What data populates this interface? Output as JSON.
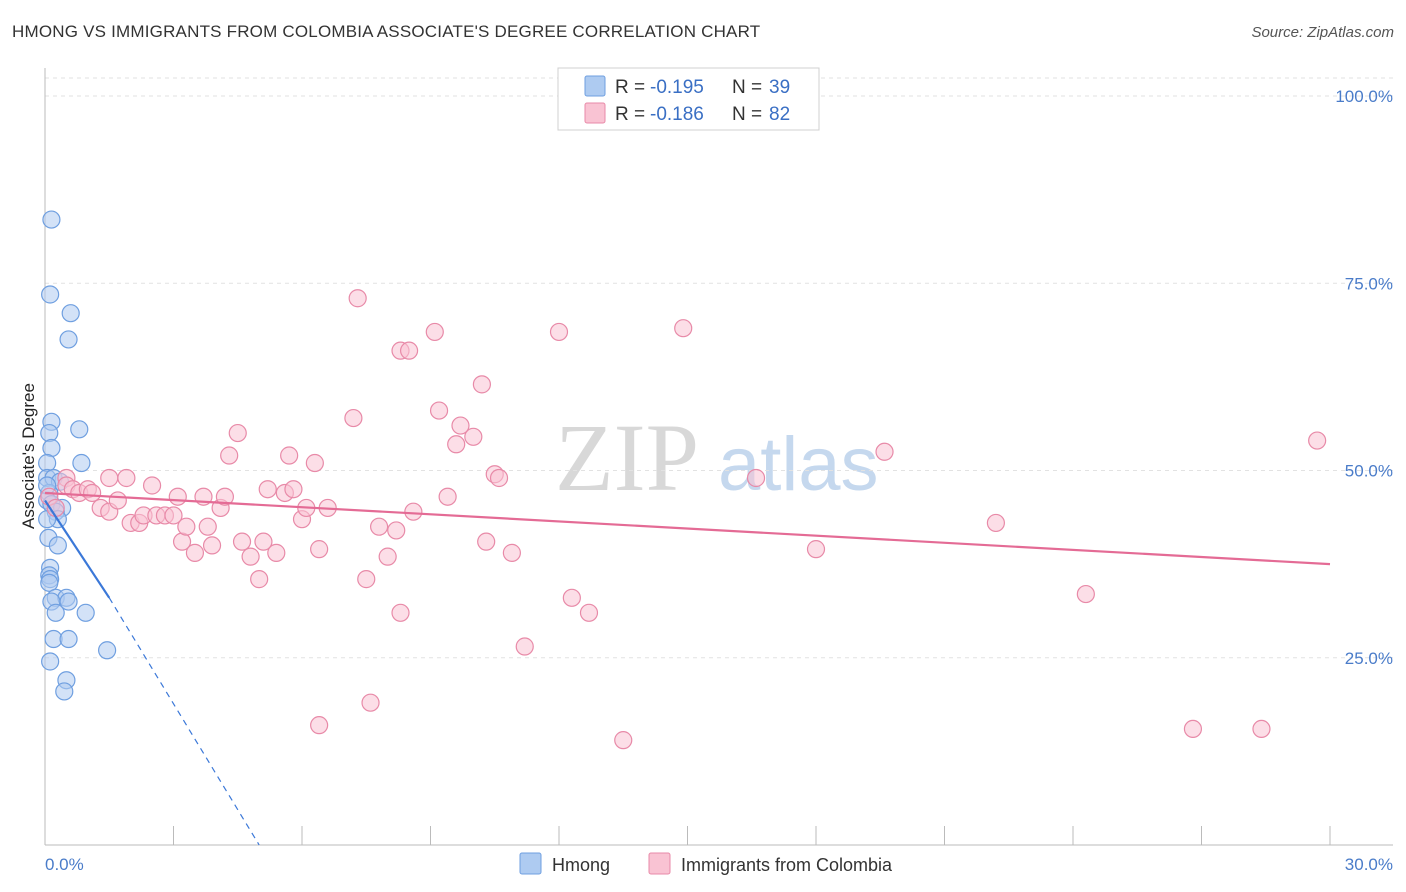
{
  "header": {
    "title": "HMONG VS IMMIGRANTS FROM COLOMBIA ASSOCIATE'S DEGREE CORRELATION CHART",
    "source": "Source: ZipAtlas.com"
  },
  "watermark": {
    "zip": "ZIP",
    "atlas": "atlas"
  },
  "legend": {
    "rows": [
      {
        "r_label": "R = ",
        "r_value": "-0.195",
        "n_label": "N = ",
        "n_value": "39",
        "color": "#a9c8f0"
      },
      {
        "r_label": "R = ",
        "r_value": "-0.186",
        "n_label": "N = ",
        "n_value": "82",
        "color": "#f7b8cb"
      }
    ]
  },
  "chart_data": {
    "type": "scatter",
    "title": "HMONG VS IMMIGRANTS FROM COLOMBIA ASSOCIATE'S DEGREE CORRELATION CHART",
    "xlabel": "",
    "ylabel": "Associate's Degree",
    "xlim": [
      0,
      30
    ],
    "ylim": [
      0,
      104
    ],
    "x_tick_labels": [
      "0.0%",
      "30.0%"
    ],
    "y_ticks": [
      25,
      50,
      75,
      100
    ],
    "y_tick_labels": [
      "25.0%",
      "50.0%",
      "75.0%",
      "100.0%"
    ],
    "grid": true,
    "series": [
      {
        "name": "Hmong",
        "color": "#6f9fe0",
        "fill": "#aecbf1",
        "line_color": "#3b78d8",
        "trend": {
          "x0": 0.0,
          "y0": 46.0,
          "x1": 1.5,
          "y1": 33.0,
          "dash_to_x": 5.0,
          "dash_to_y": 0.0
        },
        "points": [
          [
            0.15,
            83.5
          ],
          [
            0.12,
            73.5
          ],
          [
            0.6,
            71.0
          ],
          [
            0.55,
            67.5
          ],
          [
            0.15,
            56.5
          ],
          [
            0.1,
            55.0
          ],
          [
            0.8,
            55.5
          ],
          [
            0.15,
            53.0
          ],
          [
            0.05,
            51.0
          ],
          [
            0.85,
            51.0
          ],
          [
            0.05,
            49.0
          ],
          [
            0.2,
            49.0
          ],
          [
            0.35,
            48.5
          ],
          [
            0.1,
            47.0
          ],
          [
            0.05,
            46.0
          ],
          [
            0.15,
            45.5
          ],
          [
            0.4,
            45.0
          ],
          [
            0.25,
            44.5
          ],
          [
            0.3,
            43.5
          ],
          [
            0.08,
            41.0
          ],
          [
            0.3,
            40.0
          ],
          [
            0.12,
            37.0
          ],
          [
            0.1,
            36.0
          ],
          [
            0.12,
            35.5
          ],
          [
            0.1,
            35.0
          ],
          [
            0.25,
            33.0
          ],
          [
            0.5,
            33.0
          ],
          [
            0.55,
            32.5
          ],
          [
            0.15,
            32.5
          ],
          [
            0.25,
            31.0
          ],
          [
            0.95,
            31.0
          ],
          [
            0.2,
            27.5
          ],
          [
            0.55,
            27.5
          ],
          [
            1.45,
            26.0
          ],
          [
            0.12,
            24.5
          ],
          [
            0.5,
            22.0
          ],
          [
            0.45,
            20.5
          ],
          [
            0.05,
            43.5
          ],
          [
            0.05,
            48.0
          ]
        ]
      },
      {
        "name": "Immigrants from Colombia",
        "color": "#e88aa8",
        "fill": "#f9c3d3",
        "line_color": "#e46b95",
        "trend": {
          "x0": 0.0,
          "y0": 47.0,
          "x1": 30.0,
          "y1": 37.5
        },
        "points": [
          [
            0.1,
            46.5
          ],
          [
            0.25,
            45.0
          ],
          [
            0.5,
            49.0
          ],
          [
            0.5,
            48.0
          ],
          [
            0.65,
            47.5
          ],
          [
            0.8,
            47.0
          ],
          [
            1.0,
            47.5
          ],
          [
            1.1,
            47.0
          ],
          [
            1.3,
            45.0
          ],
          [
            1.5,
            44.5
          ],
          [
            1.7,
            46.0
          ],
          [
            1.5,
            49.0
          ],
          [
            1.9,
            49.0
          ],
          [
            2.0,
            43.0
          ],
          [
            2.2,
            43.0
          ],
          [
            2.3,
            44.0
          ],
          [
            2.5,
            48.0
          ],
          [
            2.6,
            44.0
          ],
          [
            2.8,
            44.0
          ],
          [
            3.0,
            44.0
          ],
          [
            3.1,
            46.5
          ],
          [
            3.2,
            40.5
          ],
          [
            3.3,
            42.5
          ],
          [
            3.5,
            39.0
          ],
          [
            3.7,
            46.5
          ],
          [
            3.8,
            42.5
          ],
          [
            3.9,
            40.0
          ],
          [
            4.1,
            45.0
          ],
          [
            4.2,
            46.5
          ],
          [
            4.3,
            52.0
          ],
          [
            4.5,
            55.0
          ],
          [
            4.6,
            40.5
          ],
          [
            4.8,
            38.5
          ],
          [
            5.0,
            35.5
          ],
          [
            5.1,
            40.5
          ],
          [
            5.2,
            47.5
          ],
          [
            5.4,
            39.0
          ],
          [
            5.6,
            47.0
          ],
          [
            5.7,
            52.0
          ],
          [
            5.8,
            47.5
          ],
          [
            6.0,
            43.5
          ],
          [
            6.1,
            45.0
          ],
          [
            6.3,
            51.0
          ],
          [
            6.4,
            39.5
          ],
          [
            6.6,
            45.0
          ],
          [
            6.4,
            16.0
          ],
          [
            7.2,
            57.0
          ],
          [
            7.3,
            73.0
          ],
          [
            7.5,
            35.5
          ],
          [
            7.8,
            42.5
          ],
          [
            8.0,
            38.5
          ],
          [
            8.2,
            42.0
          ],
          [
            8.3,
            66.0
          ],
          [
            8.5,
            66.0
          ],
          [
            8.3,
            31.0
          ],
          [
            8.6,
            44.5
          ],
          [
            9.1,
            68.5
          ],
          [
            9.2,
            58.0
          ],
          [
            9.4,
            46.5
          ],
          [
            9.6,
            53.5
          ],
          [
            9.7,
            56.0
          ],
          [
            10.0,
            54.5
          ],
          [
            10.2,
            61.5
          ],
          [
            10.3,
            40.5
          ],
          [
            10.5,
            49.5
          ],
          [
            10.6,
            49.0
          ],
          [
            10.9,
            39.0
          ],
          [
            11.2,
            26.5
          ],
          [
            7.6,
            19.0
          ],
          [
            12.0,
            68.5
          ],
          [
            12.3,
            33.0
          ],
          [
            12.7,
            31.0
          ],
          [
            13.5,
            14.0
          ],
          [
            14.9,
            69.0
          ],
          [
            16.6,
            49.0
          ],
          [
            18.0,
            39.5
          ],
          [
            19.6,
            52.5
          ],
          [
            22.2,
            43.0
          ],
          [
            24.3,
            33.5
          ],
          [
            26.8,
            15.5
          ],
          [
            28.4,
            15.5
          ],
          [
            29.7,
            54.0
          ]
        ]
      }
    ]
  }
}
